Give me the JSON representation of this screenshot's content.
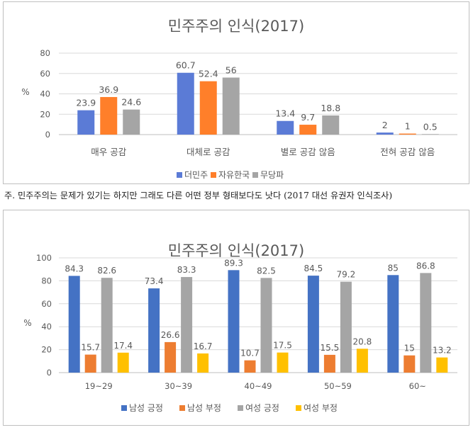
{
  "chart_data": [
    {
      "type": "bar",
      "title": "민주주의 인식(2017)",
      "ylabel": "%",
      "ylim": [
        0,
        80
      ],
      "yticks": [
        "0",
        "20",
        "40",
        "60",
        "80"
      ],
      "categories": [
        "매우 공감",
        "대체로 공감",
        "별로 공감 않음",
        "전혀 공감 않음"
      ],
      "series": [
        {
          "name": "더민주",
          "values": [
            23.9,
            60.7,
            13.4,
            2
          ],
          "labels": [
            "23.9",
            "60.7",
            "13.4",
            "2"
          ],
          "color": "#5b7bd6"
        },
        {
          "name": "자유한국",
          "values": [
            36.9,
            52.4,
            9.7,
            1
          ],
          "labels": [
            "36.9",
            "52.4",
            "9.7",
            "1"
          ],
          "color": "#ff7f2a"
        },
        {
          "name": "무당파",
          "values": [
            24.6,
            56,
            18.8,
            0.5
          ],
          "labels": [
            "24.6",
            "56",
            "18.8",
            "0.5"
          ],
          "color": "#a5a5a5"
        }
      ],
      "grid": true,
      "legend": "bottom"
    },
    {
      "type": "bar",
      "title": "민주주의 인식(2017)",
      "ylabel": "%",
      "ylim": [
        0,
        100
      ],
      "yticks": [
        "0",
        "20",
        "40",
        "60",
        "80",
        "100"
      ],
      "categories": [
        "19~29",
        "30~39",
        "40~49",
        "50~59",
        "60~"
      ],
      "series": [
        {
          "name": "남성 긍정",
          "values": [
            84.3,
            73.4,
            89.3,
            84.5,
            85
          ],
          "labels": [
            "84.3",
            "73.4",
            "89.3",
            "84.5",
            "85"
          ],
          "color": "#4472c4"
        },
        {
          "name": "남성 부정",
          "values": [
            15.7,
            26.6,
            10.7,
            15.5,
            15
          ],
          "labels": [
            "15.7",
            "26.6",
            "10.7",
            "15.5",
            "15"
          ],
          "color": "#ed7d31"
        },
        {
          "name": "여성 긍정",
          "values": [
            82.6,
            83.3,
            82.5,
            79.2,
            86.8
          ],
          "labels": [
            "82.6",
            "83.3",
            "82.5",
            "79.2",
            "86.8"
          ],
          "color": "#a5a5a5"
        },
        {
          "name": "여성 부정",
          "values": [
            17.4,
            16.7,
            17.5,
            20.8,
            13.2
          ],
          "labels": [
            "17.4",
            "16.7",
            "17.5",
            "20.8",
            "13.2"
          ],
          "color": "#ffc000"
        }
      ],
      "grid": true,
      "legend": "bottom"
    }
  ],
  "note": "주. 민주주의는 문제가 있기는 하지만 그래도 다른 어떤 정부 형태보다도 낫다 (2017 대선 유권자 인식조사)",
  "colors": {
    "gridline": "#d9d9d9",
    "axis": "#bfbfbf",
    "text": "#595959"
  }
}
